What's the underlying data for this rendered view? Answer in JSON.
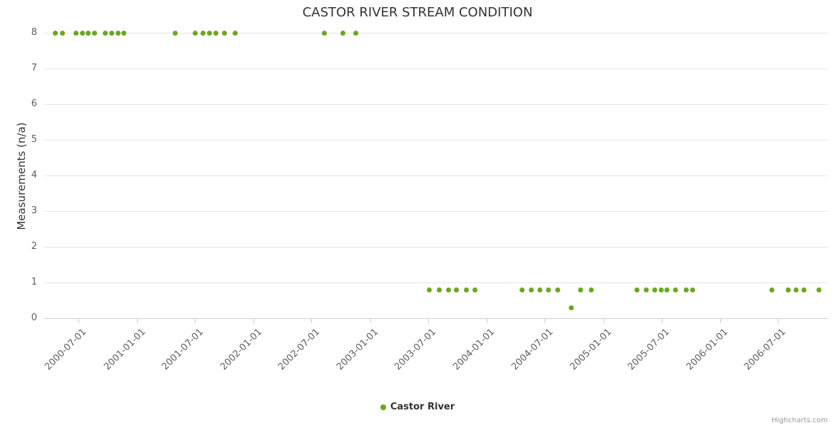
{
  "chart_data": {
    "type": "scatter",
    "title": "CASTOR RIVER STREAM CONDITION",
    "ylabel": "Measurements (n/a)",
    "ylim": [
      0,
      8
    ],
    "y_ticks": [
      0,
      1,
      2,
      3,
      4,
      5,
      6,
      7,
      8
    ],
    "x_range": [
      "2000-03-16",
      "2006-12-05"
    ],
    "x_ticks": [
      "2000-07-01",
      "2001-01-01",
      "2001-07-01",
      "2002-01-01",
      "2002-07-01",
      "2003-01-01",
      "2003-07-01",
      "2004-01-01",
      "2004-07-01",
      "2005-01-01",
      "2005-07-01",
      "2006-01-01",
      "2006-07-01"
    ],
    "grid": true,
    "legend_position": "bottom-center",
    "credits_label": "Highcharts.com",
    "colors": {
      "series_green": "#6ba71e",
      "grid": "#e6e6e6",
      "axis_labels": "#606060",
      "title": "#333333"
    },
    "series": [
      {
        "name": "Castor River",
        "color": "#6ba71e",
        "marker": "circle",
        "points": [
          [
            "2000-04-20",
            8
          ],
          [
            "2000-05-13",
            8
          ],
          [
            "2000-06-24",
            8
          ],
          [
            "2000-07-14",
            8
          ],
          [
            "2000-08-01",
            8
          ],
          [
            "2000-08-21",
            8
          ],
          [
            "2000-09-24",
            8
          ],
          [
            "2000-10-14",
            8
          ],
          [
            "2000-11-03",
            8
          ],
          [
            "2000-11-21",
            8
          ],
          [
            "2001-04-30",
            8
          ],
          [
            "2001-07-01",
            8
          ],
          [
            "2001-07-26",
            8
          ],
          [
            "2001-08-15",
            8
          ],
          [
            "2001-09-04",
            8
          ],
          [
            "2001-10-01",
            8
          ],
          [
            "2001-11-05",
            8
          ],
          [
            "2002-08-10",
            8
          ],
          [
            "2002-10-07",
            8
          ],
          [
            "2002-11-17",
            8
          ],
          [
            "2003-07-05",
            0.8
          ],
          [
            "2003-08-06",
            0.8
          ],
          [
            "2003-09-04",
            0.8
          ],
          [
            "2003-09-28",
            0.8
          ],
          [
            "2003-10-30",
            0.8
          ],
          [
            "2003-11-26",
            0.8
          ],
          [
            "2004-04-22",
            0.8
          ],
          [
            "2004-05-19",
            0.8
          ],
          [
            "2004-06-15",
            0.8
          ],
          [
            "2004-07-12",
            0.8
          ],
          [
            "2004-08-10",
            0.8
          ],
          [
            "2004-09-22",
            0.3
          ],
          [
            "2004-10-21",
            0.8
          ],
          [
            "2004-11-23",
            0.8
          ],
          [
            "2005-04-16",
            0.8
          ],
          [
            "2005-05-15",
            0.8
          ],
          [
            "2005-06-11",
            0.8
          ],
          [
            "2005-06-30",
            0.8
          ],
          [
            "2005-07-19",
            0.8
          ],
          [
            "2005-08-15",
            0.8
          ],
          [
            "2005-09-17",
            0.8
          ],
          [
            "2005-10-07",
            0.8
          ],
          [
            "2006-06-13",
            0.8
          ],
          [
            "2006-08-04",
            0.8
          ],
          [
            "2006-08-28",
            0.8
          ],
          [
            "2006-09-22",
            0.8
          ],
          [
            "2006-11-08",
            0.8
          ]
        ]
      }
    ]
  }
}
